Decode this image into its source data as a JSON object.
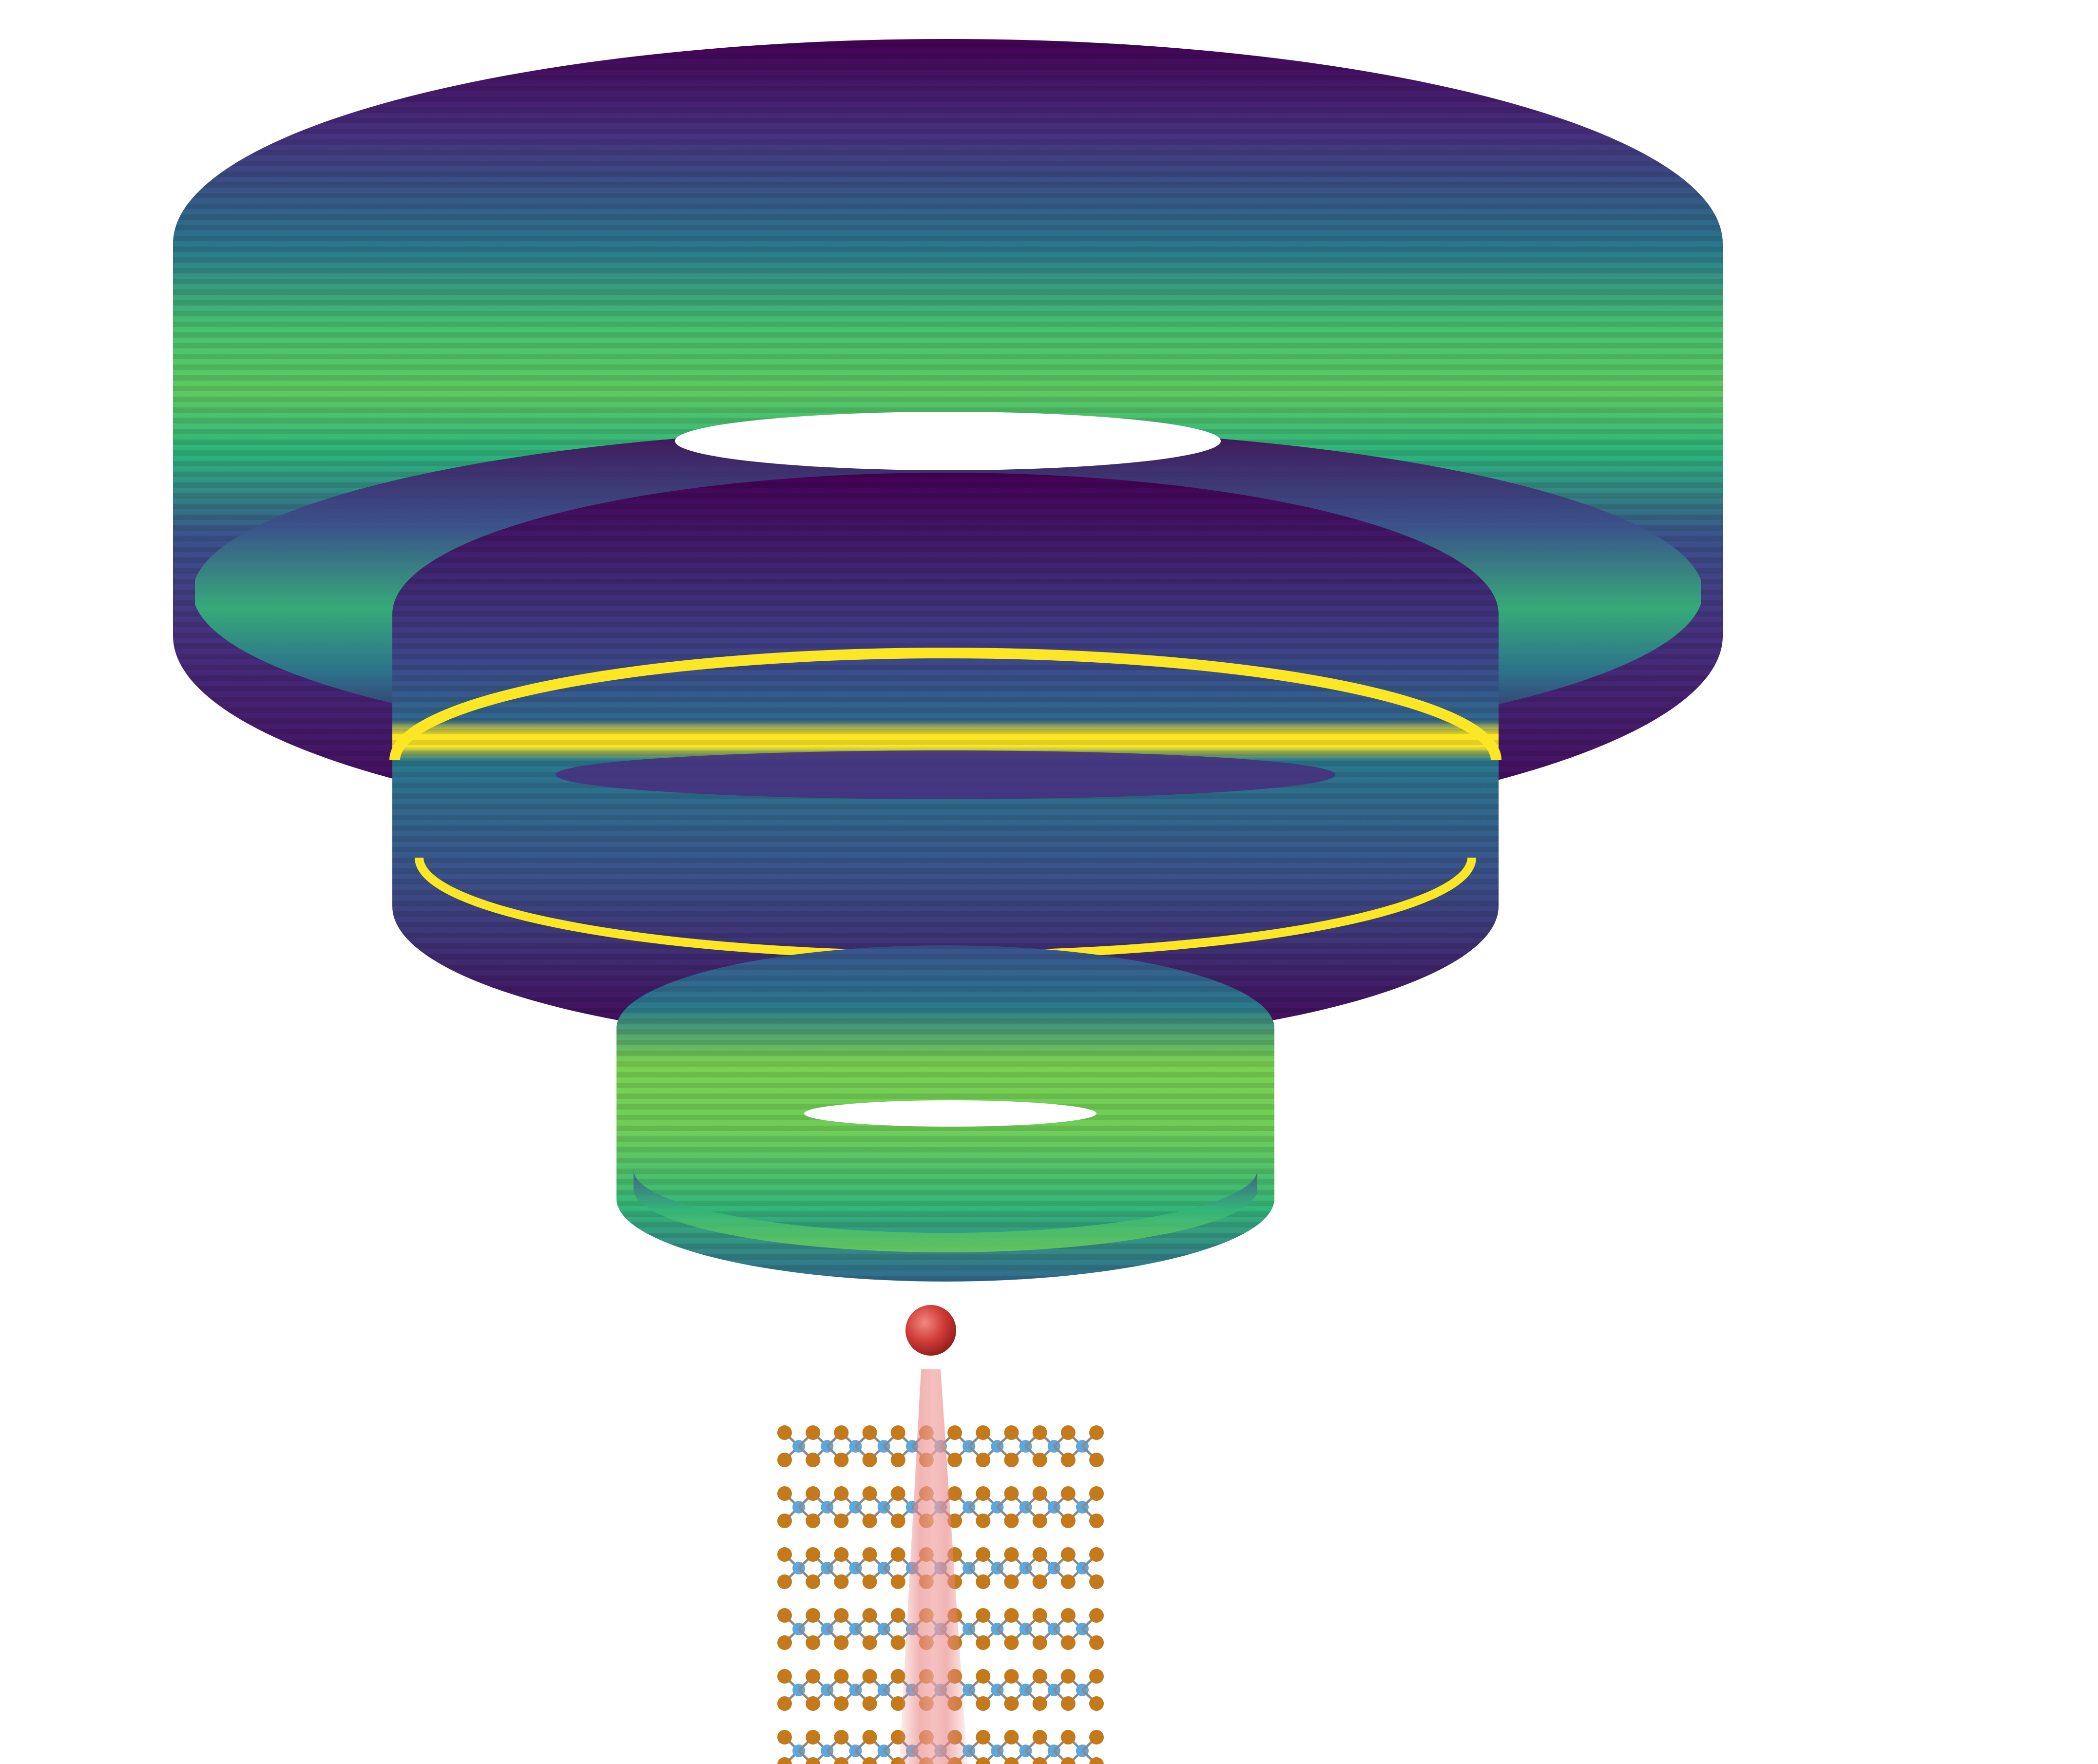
{
  "figure": {
    "colors": {
      "background": "#ffffff",
      "viridis_dark": "#440154",
      "viridis_blue": "#3b528b",
      "viridis_teal": "#21918c",
      "viridis_green": "#5ec962",
      "viridis_yellow": "#fde725",
      "metal_atom": "#c47a1a",
      "chalcogen_atom": "#5aa8e0",
      "bond": "#8a8a8a",
      "particle": "#d03a36",
      "beam": "#e88a88"
    },
    "rings": [
      {
        "name": "outer-ring",
        "pattern": "broad-green-band"
      },
      {
        "name": "middle-ring",
        "pattern": "sharp-yellow-line"
      },
      {
        "name": "inner-ring",
        "pattern": "bright-green-band"
      }
    ],
    "crystal": {
      "layers": 6,
      "atoms_per_row": 12
    },
    "icons": [
      "particle-icon",
      "beam-icon",
      "crystal-lattice-icon"
    ]
  }
}
